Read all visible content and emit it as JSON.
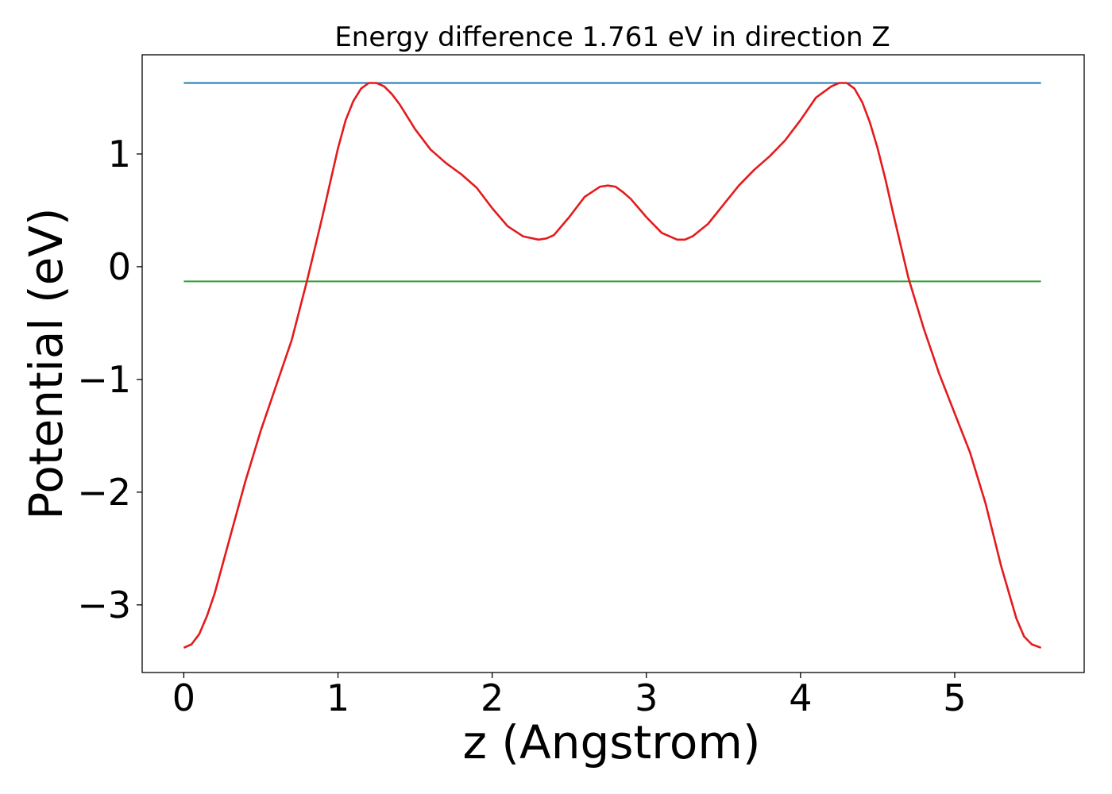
{
  "chart_data": {
    "type": "line",
    "title": "Energy difference 1.761 eV in direction Z",
    "xlabel": "z (Angstrom)",
    "ylabel": "Potential (eV)",
    "xlim": [
      -0.27,
      5.84
    ],
    "ylim": [
      -3.6,
      1.88
    ],
    "xticks": [
      0,
      1,
      2,
      3,
      4,
      5
    ],
    "xtick_labels": [
      "0",
      "1",
      "2",
      "3",
      "4",
      "5"
    ],
    "yticks": [
      -3,
      -2,
      -1,
      0,
      1
    ],
    "ytick_labels": [
      "−3",
      "−2",
      "−1",
      "0",
      "1"
    ],
    "grid": false,
    "series": [
      {
        "color": "#1f77b4",
        "x": [
          0,
          5.56
        ],
        "y": [
          1.63,
          1.63
        ]
      },
      {
        "color": "#2ca02c",
        "x": [
          0,
          5.56
        ],
        "y": [
          -0.13,
          -0.13
        ]
      },
      {
        "color": "#e41a1c",
        "x": [
          0,
          0.05,
          0.1,
          0.15,
          0.2,
          0.3,
          0.4,
          0.5,
          0.6,
          0.7,
          0.8,
          0.9,
          1.0,
          1.05,
          1.1,
          1.15,
          1.2,
          1.25,
          1.3,
          1.35,
          1.4,
          1.5,
          1.6,
          1.7,
          1.8,
          1.9,
          2.0,
          2.1,
          2.2,
          2.3,
          2.35,
          2.4,
          2.5,
          2.6,
          2.7,
          2.75,
          2.8,
          2.85,
          2.9,
          3.0,
          3.1,
          3.2,
          3.25,
          3.3,
          3.4,
          3.5,
          3.6,
          3.7,
          3.8,
          3.9,
          4.0,
          4.1,
          4.2,
          4.25,
          4.3,
          4.35,
          4.4,
          4.45,
          4.5,
          4.55,
          4.6,
          4.7,
          4.8,
          4.9,
          5.0,
          5.1,
          5.2,
          5.3,
          5.4,
          5.45,
          5.5,
          5.56
        ],
        "y": [
          -3.38,
          -3.35,
          -3.26,
          -3.1,
          -2.9,
          -2.4,
          -1.9,
          -1.45,
          -1.05,
          -0.65,
          -0.12,
          0.45,
          1.05,
          1.3,
          1.47,
          1.58,
          1.63,
          1.63,
          1.6,
          1.53,
          1.44,
          1.22,
          1.04,
          0.92,
          0.82,
          0.7,
          0.52,
          0.36,
          0.27,
          0.24,
          0.25,
          0.28,
          0.44,
          0.62,
          0.71,
          0.72,
          0.71,
          0.66,
          0.6,
          0.44,
          0.3,
          0.24,
          0.24,
          0.27,
          0.38,
          0.55,
          0.72,
          0.86,
          0.98,
          1.12,
          1.3,
          1.5,
          1.6,
          1.63,
          1.63,
          1.58,
          1.46,
          1.28,
          1.05,
          0.78,
          0.48,
          -0.1,
          -0.55,
          -0.95,
          -1.3,
          -1.65,
          -2.1,
          -2.65,
          -3.12,
          -3.28,
          -3.35,
          -3.38
        ]
      }
    ]
  }
}
